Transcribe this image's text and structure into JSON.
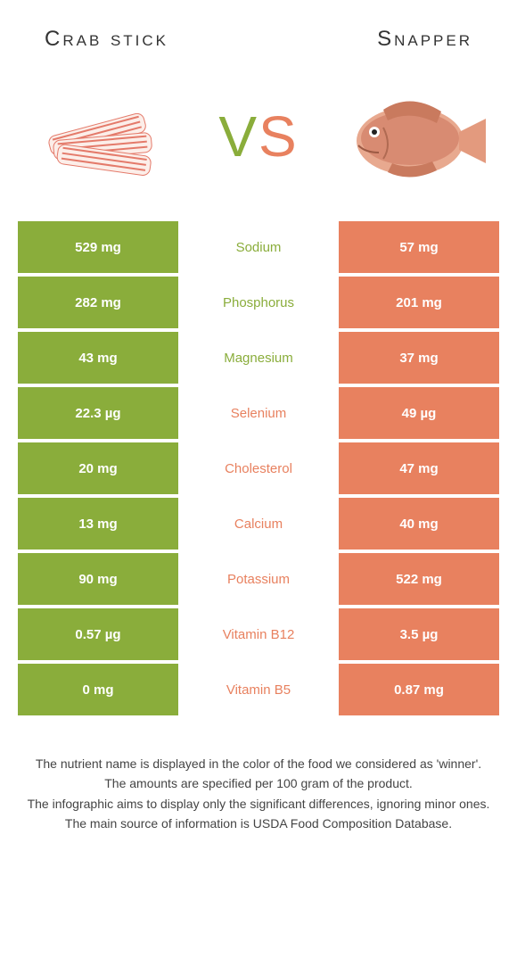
{
  "header": {
    "left_title": "Crab stick",
    "right_title": "Snapper"
  },
  "vs": {
    "v": "V",
    "s": "S"
  },
  "colors": {
    "left": "#8aad3b",
    "right": "#e8815f"
  },
  "rows": [
    {
      "left": "529 mg",
      "label": "Sodium",
      "right": "57 mg",
      "winner": "left"
    },
    {
      "left": "282 mg",
      "label": "Phosphorus",
      "right": "201 mg",
      "winner": "left"
    },
    {
      "left": "43 mg",
      "label": "Magnesium",
      "right": "37 mg",
      "winner": "left"
    },
    {
      "left": "22.3 µg",
      "label": "Selenium",
      "right": "49 µg",
      "winner": "right"
    },
    {
      "left": "20 mg",
      "label": "Cholesterol",
      "right": "47 mg",
      "winner": "right"
    },
    {
      "left": "13 mg",
      "label": "Calcium",
      "right": "40 mg",
      "winner": "right"
    },
    {
      "left": "90 mg",
      "label": "Potassium",
      "right": "522 mg",
      "winner": "right"
    },
    {
      "left": "0.57 µg",
      "label": "Vitamin B12",
      "right": "3.5 µg",
      "winner": "right"
    },
    {
      "left": "0 mg",
      "label": "Vitamin B5",
      "right": "0.87 mg",
      "winner": "right"
    }
  ],
  "footer": {
    "line1": "The nutrient name is displayed in the color of the food we considered as 'winner'.",
    "line2": "The amounts are specified per 100 gram of the product.",
    "line3": "The infographic aims to display only the significant differences, ignoring minor ones.",
    "line4": "The main source of information is USDA Food Composition Database."
  }
}
